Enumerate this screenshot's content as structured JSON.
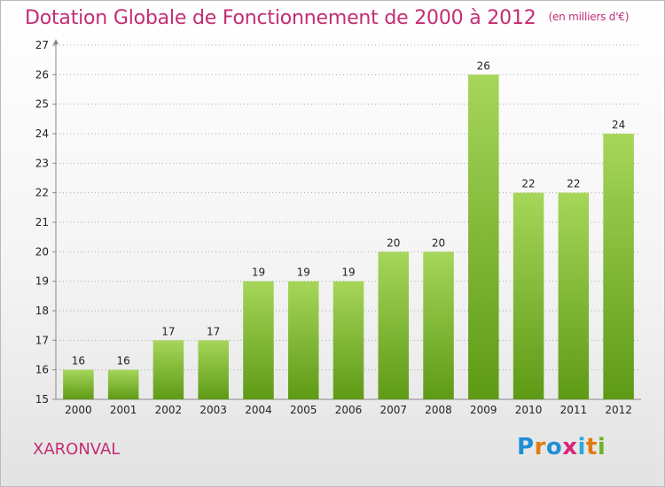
{
  "title": "Dotation Globale de Fonctionnement de 2000 à 2012",
  "subtitle": "(en milliers d'€)",
  "town": "XARONVAL",
  "logo": {
    "text": "Proxiti",
    "letter_colors": [
      "#1e8fd6",
      "#e07b12",
      "#1e8fd6",
      "#d9237a",
      "#2aa9e0",
      "#e07b12",
      "#6cb22a"
    ]
  },
  "colors": {
    "title": "#c32d73",
    "bar_top": "#a6d65a",
    "bar_bottom": "#5e9a16",
    "axis": "#888888",
    "grid": "#aaaaaa"
  },
  "chart_data": {
    "type": "bar",
    "categories": [
      "2000",
      "2001",
      "2002",
      "2003",
      "2004",
      "2005",
      "2006",
      "2007",
      "2008",
      "2009",
      "2010",
      "2011",
      "2012"
    ],
    "values": [
      16,
      16,
      17,
      17,
      19,
      19,
      19,
      20,
      20,
      26,
      22,
      22,
      24
    ],
    "ylim": [
      15,
      27
    ],
    "yticks": [
      15,
      16,
      17,
      18,
      19,
      20,
      21,
      22,
      23,
      24,
      25,
      26,
      27
    ],
    "grid": true,
    "legend": "none"
  }
}
